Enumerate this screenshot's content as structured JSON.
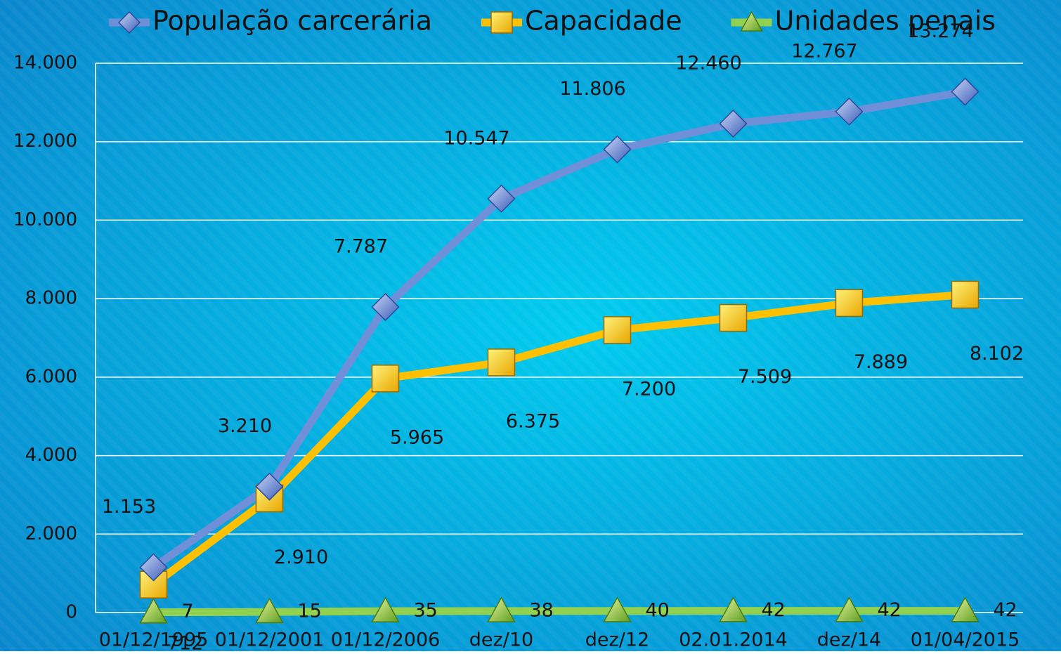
{
  "chart_data": {
    "type": "line",
    "categories": [
      "01/12/1995",
      "01/12/2001",
      "01/12/2006",
      "dez/10",
      "dez/12",
      "02.01.2014",
      "dez/14",
      "01/04/2015"
    ],
    "series": [
      {
        "name": "População carcerária",
        "color": "#6f8fd8",
        "marker": "diamond",
        "values": [
          1153,
          3210,
          7787,
          10547,
          11806,
          12460,
          12767,
          13274
        ],
        "value_labels": [
          "1.153",
          "3.210",
          "7.787",
          "10.547",
          "11.806",
          "12.460",
          "12.767",
          "13.274"
        ]
      },
      {
        "name": "Capacidade",
        "color": "#ffc000",
        "marker": "square",
        "values": [
          712,
          2910,
          5965,
          6375,
          7200,
          7509,
          7889,
          8102
        ],
        "value_labels": [
          "712",
          "2.910",
          "5.965",
          "6.375",
          "7.200",
          "7.509",
          "7.889",
          "8.102"
        ]
      },
      {
        "name": "Unidades penais",
        "color": "#92d050",
        "marker": "triangle",
        "values": [
          7,
          15,
          35,
          38,
          40,
          42,
          42,
          42
        ]
      }
    ],
    "ylim": [
      0,
      14000
    ],
    "yticks": [
      0,
      {
        "value": 2000,
        "label": "2.000"
      },
      {
        "value": 4000,
        "label": "4.000"
      },
      {
        "value": 6000,
        "label": "6.000"
      },
      {
        "value": 8000,
        "label": "8.000"
      },
      {
        "value": 10000,
        "label": "10.000"
      },
      {
        "value": 12000,
        "label": "12.000"
      },
      {
        "value": 14000,
        "label": "14.000"
      }
    ],
    "grid": true,
    "legend": "top"
  }
}
